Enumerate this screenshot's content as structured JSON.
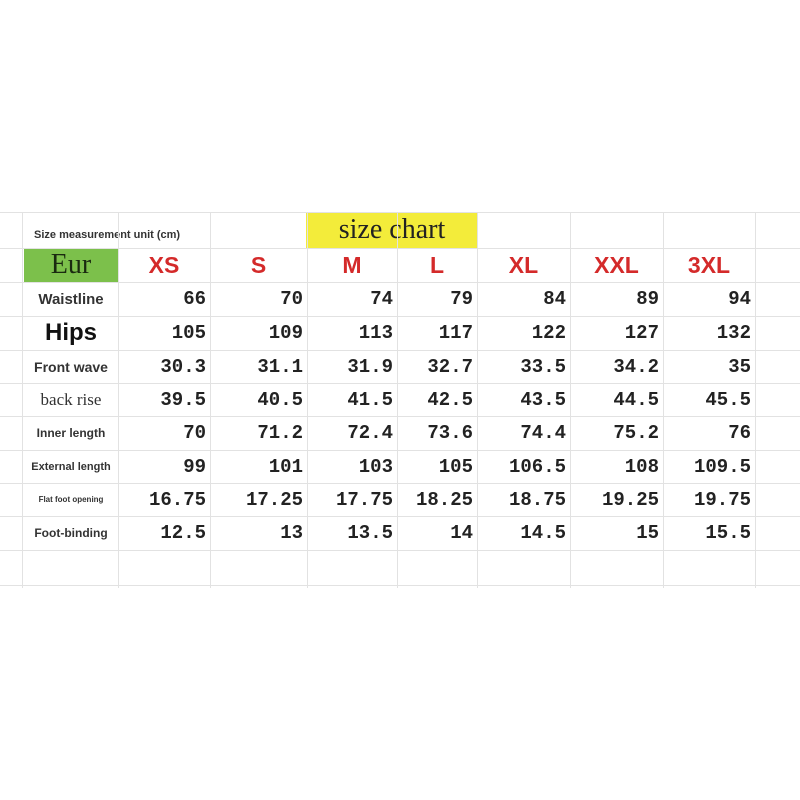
{
  "unit_note": "Size measurement unit (cm)",
  "title": "size chart",
  "corner": "Eur",
  "colors": {
    "title_bg": "#f3ec3a",
    "corner_bg": "#7cc04b",
    "size_text": "#d42a2a"
  },
  "sizes": [
    "XS",
    "S",
    "M",
    "L",
    "XL",
    "XXL",
    "3XL"
  ],
  "rows": [
    {
      "label": "Waistline",
      "values": [
        "66",
        "70",
        "74",
        "79",
        "84",
        "89",
        "94"
      ]
    },
    {
      "label": "Hips",
      "values": [
        "105",
        "109",
        "113",
        "117",
        "122",
        "127",
        "132"
      ]
    },
    {
      "label": "Front wave",
      "values": [
        "30.3",
        "31.1",
        "31.9",
        "32.7",
        "33.5",
        "34.2",
        "35"
      ]
    },
    {
      "label": "back rise",
      "values": [
        "39.5",
        "40.5",
        "41.5",
        "42.5",
        "43.5",
        "44.5",
        "45.5"
      ]
    },
    {
      "label": "Inner length",
      "values": [
        "70",
        "71.2",
        "72.4",
        "73.6",
        "74.4",
        "75.2",
        "76"
      ]
    },
    {
      "label": "External length",
      "values": [
        "99",
        "101",
        "103",
        "105",
        "106.5",
        "108",
        "109.5"
      ]
    },
    {
      "label": "Flat foot opening",
      "values": [
        "16.75",
        "17.25",
        "17.75",
        "18.25",
        "18.75",
        "19.25",
        "19.75"
      ]
    },
    {
      "label": "Foot-binding",
      "values": [
        "12.5",
        "13",
        "13.5",
        "14",
        "14.5",
        "15",
        "15.5"
      ]
    }
  ]
}
